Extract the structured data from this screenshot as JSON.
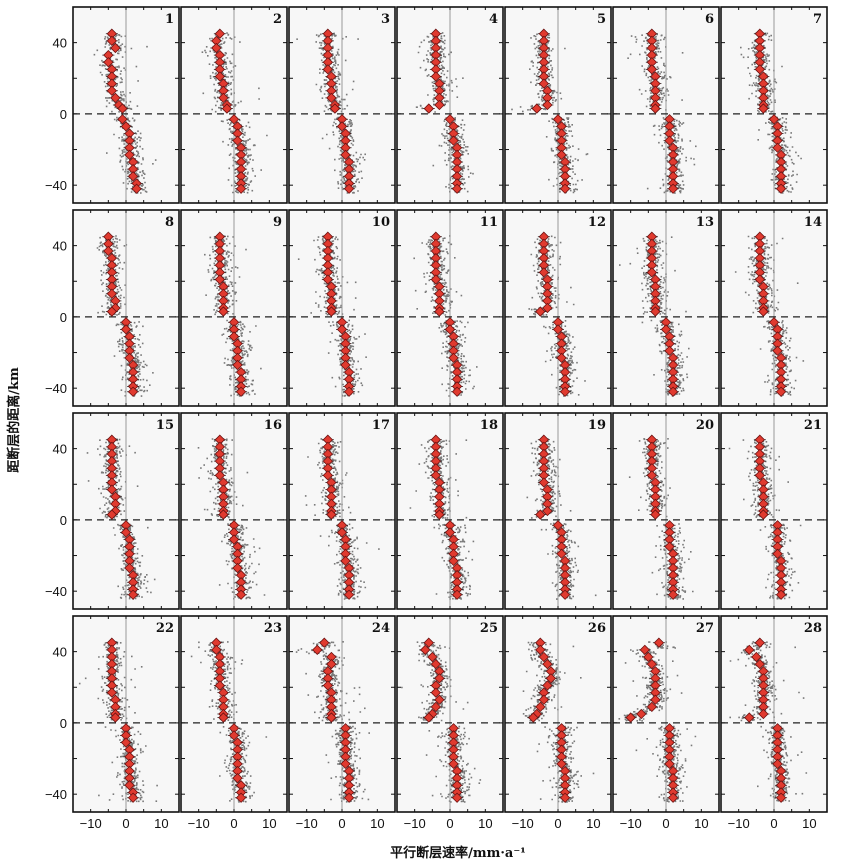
{
  "chart_data": {
    "type": "scatter",
    "grid_rows": 4,
    "grid_cols": 7,
    "xlabel": "平行断层速率/mm·a⁻¹",
    "ylabel": "距断层的距离/km",
    "xlim": [
      -15,
      15
    ],
    "ylim": [
      -50,
      60
    ],
    "xticks": [
      -10,
      0,
      10
    ],
    "yticks": [
      40,
      0,
      -40
    ],
    "zero_line": "dashed",
    "colors": {
      "points": "#7a7a7a",
      "markers": "#e03a2f",
      "marker_edge": "#6a1010",
      "panel_bg": "#f7f7f7",
      "border": "#111111"
    },
    "panels": [
      {
        "label": "1",
        "north": [
          -4,
          -4,
          -3,
          -5,
          -5,
          -4,
          -4,
          -4,
          -4,
          -3,
          -2,
          -1
        ],
        "south": [
          -1,
          0,
          1,
          1,
          1,
          1,
          2,
          2,
          2,
          3,
          3
        ]
      },
      {
        "label": "2",
        "north": [
          -4,
          -5,
          -5,
          -4,
          -4,
          -4,
          -4,
          -3,
          -3,
          -3,
          -2,
          -2
        ],
        "south": [
          0,
          1,
          1,
          1,
          2,
          2,
          2,
          2,
          2,
          2,
          2
        ]
      },
      {
        "label": "3",
        "north": [
          -4,
          -4,
          -4,
          -4,
          -4,
          -4,
          -3,
          -3,
          -3,
          -3,
          -2,
          -2
        ],
        "south": [
          0,
          0,
          1,
          1,
          1,
          1,
          2,
          2,
          2,
          2,
          2
        ]
      },
      {
        "label": "4",
        "north": [
          -4,
          -4,
          -4,
          -4,
          -4,
          -4,
          -4,
          -3,
          -3,
          -3,
          -3,
          -6
        ],
        "south": [
          0,
          1,
          1,
          1,
          2,
          2,
          2,
          2,
          2,
          2,
          2
        ]
      },
      {
        "label": "5",
        "north": [
          -4,
          -4,
          -4,
          -4,
          -4,
          -4,
          -4,
          -4,
          -3,
          -3,
          -3,
          -6
        ],
        "south": [
          0,
          1,
          1,
          1,
          1,
          1,
          2,
          2,
          2,
          2,
          2
        ]
      },
      {
        "label": "6",
        "north": [
          -4,
          -4,
          -4,
          -4,
          -4,
          -4,
          -3,
          -3,
          -3,
          -3,
          -3,
          -3
        ],
        "south": [
          1,
          1,
          1,
          1,
          2,
          2,
          2,
          2,
          2,
          2,
          2
        ]
      },
      {
        "label": "7",
        "north": [
          -4,
          -4,
          -4,
          -4,
          -4,
          -4,
          -3,
          -3,
          -3,
          -3,
          -3,
          -3
        ],
        "south": [
          0,
          1,
          1,
          1,
          1,
          2,
          2,
          2,
          2,
          2,
          2
        ]
      },
      {
        "label": "8",
        "north": [
          -5,
          -5,
          -5,
          -4,
          -4,
          -4,
          -4,
          -4,
          -4,
          -3,
          -3,
          -4
        ],
        "south": [
          0,
          0,
          1,
          1,
          1,
          1,
          2,
          2,
          2,
          2,
          2
        ]
      },
      {
        "label": "9",
        "north": [
          -4,
          -4,
          -4,
          -4,
          -4,
          -4,
          -4,
          -3,
          -3,
          -3,
          -3,
          -3
        ],
        "south": [
          0,
          0,
          0,
          1,
          1,
          1,
          1,
          2,
          2,
          2,
          2
        ]
      },
      {
        "label": "10",
        "north": [
          -4,
          -4,
          -4,
          -4,
          -4,
          -4,
          -4,
          -3,
          -3,
          -3,
          -3,
          -3
        ],
        "south": [
          0,
          0,
          1,
          1,
          1,
          1,
          1,
          2,
          2,
          2,
          2
        ]
      },
      {
        "label": "11",
        "north": [
          -4,
          -4,
          -4,
          -4,
          -4,
          -4,
          -4,
          -3,
          -3,
          -3,
          -3,
          -3
        ],
        "south": [
          0,
          0,
          1,
          1,
          1,
          1,
          2,
          2,
          2,
          2,
          2
        ]
      },
      {
        "label": "12",
        "north": [
          -4,
          -4,
          -4,
          -4,
          -4,
          -4,
          -3,
          -3,
          -3,
          -3,
          -3,
          -5
        ],
        "south": [
          0,
          0,
          1,
          1,
          1,
          1,
          2,
          2,
          2,
          2,
          2
        ]
      },
      {
        "label": "13",
        "north": [
          -4,
          -4,
          -4,
          -4,
          -4,
          -4,
          -3,
          -3,
          -3,
          -3,
          -3,
          -3
        ],
        "south": [
          0,
          0,
          1,
          1,
          1,
          2,
          2,
          2,
          2,
          2,
          2
        ]
      },
      {
        "label": "14",
        "north": [
          -4,
          -4,
          -4,
          -4,
          -4,
          -4,
          -4,
          -3,
          -3,
          -3,
          -3,
          -3
        ],
        "south": [
          0,
          1,
          1,
          1,
          1,
          2,
          2,
          2,
          2,
          2,
          2
        ]
      },
      {
        "label": "15",
        "north": [
          -4,
          -4,
          -4,
          -4,
          -4,
          -4,
          -4,
          -4,
          -3,
          -3,
          -3,
          -4
        ],
        "south": [
          0,
          0,
          1,
          1,
          1,
          1,
          1,
          2,
          2,
          2,
          2
        ]
      },
      {
        "label": "16",
        "north": [
          -4,
          -4,
          -4,
          -4,
          -4,
          -4,
          -3,
          -3,
          -3,
          -3,
          -3,
          -3
        ],
        "south": [
          0,
          0,
          0,
          1,
          1,
          1,
          1,
          2,
          2,
          2,
          2
        ]
      },
      {
        "label": "17",
        "north": [
          -4,
          -4,
          -4,
          -4,
          -4,
          -4,
          -3,
          -3,
          -3,
          -3,
          -3,
          -3
        ],
        "south": [
          0,
          0,
          1,
          1,
          1,
          1,
          2,
          2,
          2,
          2,
          2
        ]
      },
      {
        "label": "18",
        "north": [
          -4,
          -4,
          -4,
          -4,
          -4,
          -4,
          -3,
          -3,
          -3,
          -3,
          -3,
          -3
        ],
        "south": [
          0,
          0,
          1,
          1,
          1,
          1,
          2,
          2,
          2,
          2,
          2
        ]
      },
      {
        "label": "19",
        "north": [
          -4,
          -4,
          -4,
          -4,
          -4,
          -4,
          -4,
          -3,
          -3,
          -3,
          -3,
          -5
        ],
        "south": [
          0,
          1,
          1,
          1,
          1,
          2,
          2,
          2,
          2,
          2,
          2
        ]
      },
      {
        "label": "20",
        "north": [
          -4,
          -4,
          -4,
          -4,
          -4,
          -4,
          -3,
          -3,
          -3,
          -3,
          -3,
          -3
        ],
        "south": [
          1,
          1,
          1,
          1,
          2,
          2,
          2,
          2,
          2,
          2,
          2
        ]
      },
      {
        "label": "21",
        "north": [
          -4,
          -4,
          -4,
          -4,
          -4,
          -4,
          -3,
          -3,
          -3,
          -3,
          -3,
          -3
        ],
        "south": [
          1,
          1,
          1,
          1,
          1,
          2,
          2,
          2,
          2,
          2,
          2
        ]
      },
      {
        "label": "22",
        "north": [
          -4,
          -4,
          -4,
          -4,
          -4,
          -4,
          -4,
          -4,
          -3,
          -3,
          -3,
          -3
        ],
        "south": [
          0,
          0,
          0,
          1,
          1,
          1,
          1,
          1,
          1,
          2,
          2
        ]
      },
      {
        "label": "23",
        "north": [
          -5,
          -5,
          -4,
          -4,
          -4,
          -4,
          -4,
          -3,
          -3,
          -3,
          -3,
          -3
        ],
        "south": [
          0,
          0,
          1,
          1,
          1,
          1,
          1,
          1,
          2,
          2,
          2
        ]
      },
      {
        "label": "24",
        "north": [
          -5,
          -7,
          -3,
          -3,
          -4,
          -4,
          -4,
          -3,
          -3,
          -3,
          -3,
          -3
        ],
        "south": [
          1,
          1,
          1,
          1,
          1,
          1,
          2,
          2,
          2,
          2,
          2
        ]
      },
      {
        "label": "25",
        "north": [
          -6,
          -7,
          -5,
          -4,
          -3,
          -3,
          -4,
          -4,
          -3,
          -4,
          -5,
          -6
        ],
        "south": [
          1,
          1,
          1,
          1,
          1,
          1,
          2,
          2,
          2,
          2,
          2
        ]
      },
      {
        "label": "26",
        "north": [
          -5,
          -5,
          -4,
          -3,
          -2,
          -2,
          -3,
          -4,
          -4,
          -5,
          -6,
          -7
        ],
        "south": [
          1,
          1,
          1,
          1,
          1,
          1,
          2,
          2,
          2,
          2,
          2
        ]
      },
      {
        "label": "27",
        "north": [
          -2,
          -6,
          -5,
          -4,
          -3,
          -3,
          -3,
          -3,
          -3,
          -4,
          -7,
          -10
        ],
        "south": [
          1,
          1,
          1,
          1,
          1,
          1,
          2,
          2,
          2,
          2,
          2
        ]
      },
      {
        "label": "28",
        "north": [
          -4,
          -7,
          -5,
          -4,
          -3,
          -3,
          -3,
          -3,
          -3,
          -3,
          -3,
          -7
        ],
        "south": [
          1,
          1,
          1,
          1,
          1,
          1,
          2,
          2,
          2,
          2,
          2
        ]
      }
    ]
  }
}
